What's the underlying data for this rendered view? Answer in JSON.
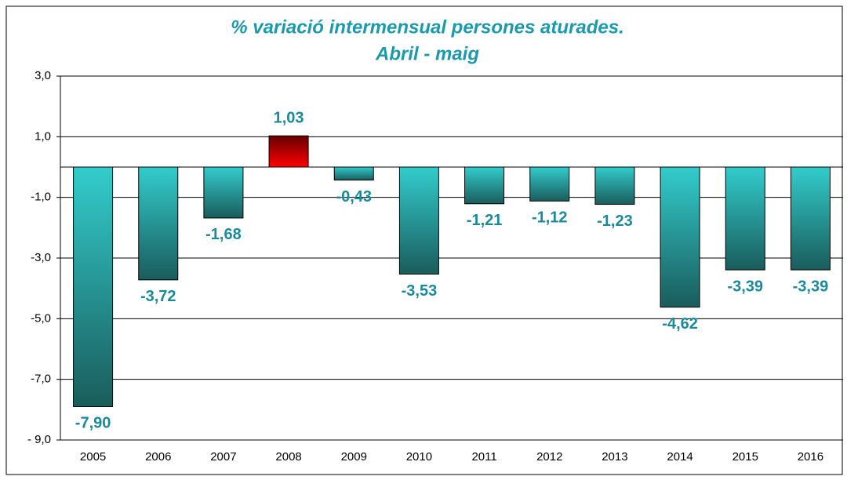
{
  "chart_data": {
    "type": "bar",
    "title": "% variació intermensual persones aturades.",
    "subtitle": "Abril - maig",
    "categories": [
      "2005",
      "2006",
      "2007",
      "2008",
      "2009",
      "2010",
      "2011",
      "2012",
      "2013",
      "2014",
      "2015",
      "2016"
    ],
    "values": [
      -7.9,
      -3.72,
      -1.68,
      1.03,
      -0.43,
      -3.53,
      -1.21,
      -1.12,
      -1.23,
      -4.62,
      -3.39,
      -3.39
    ],
    "value_labels": [
      "-7,90",
      "-3,72",
      "-1,68",
      "1,03",
      "-0,43",
      "-3,53",
      "-1,21",
      "-1,12",
      "-1,23",
      "-4,62",
      "-3,39",
      "-3,39"
    ],
    "color": "#33cccc",
    "positive_color": "#ff0000",
    "ylim": [
      -9,
      3
    ],
    "yticks": [
      {
        "value": -9,
        "label": "- 9,0"
      },
      {
        "value": -7,
        "label": "-7,0"
      },
      {
        "value": -5,
        "label": "-5,0"
      },
      {
        "value": -3,
        "label": "-3,0"
      },
      {
        "value": -1,
        "label": "-1,0"
      },
      {
        "value": 1,
        "label": "1,0"
      },
      {
        "value": 3,
        "label": "3,0"
      }
    ],
    "grid": true
  }
}
